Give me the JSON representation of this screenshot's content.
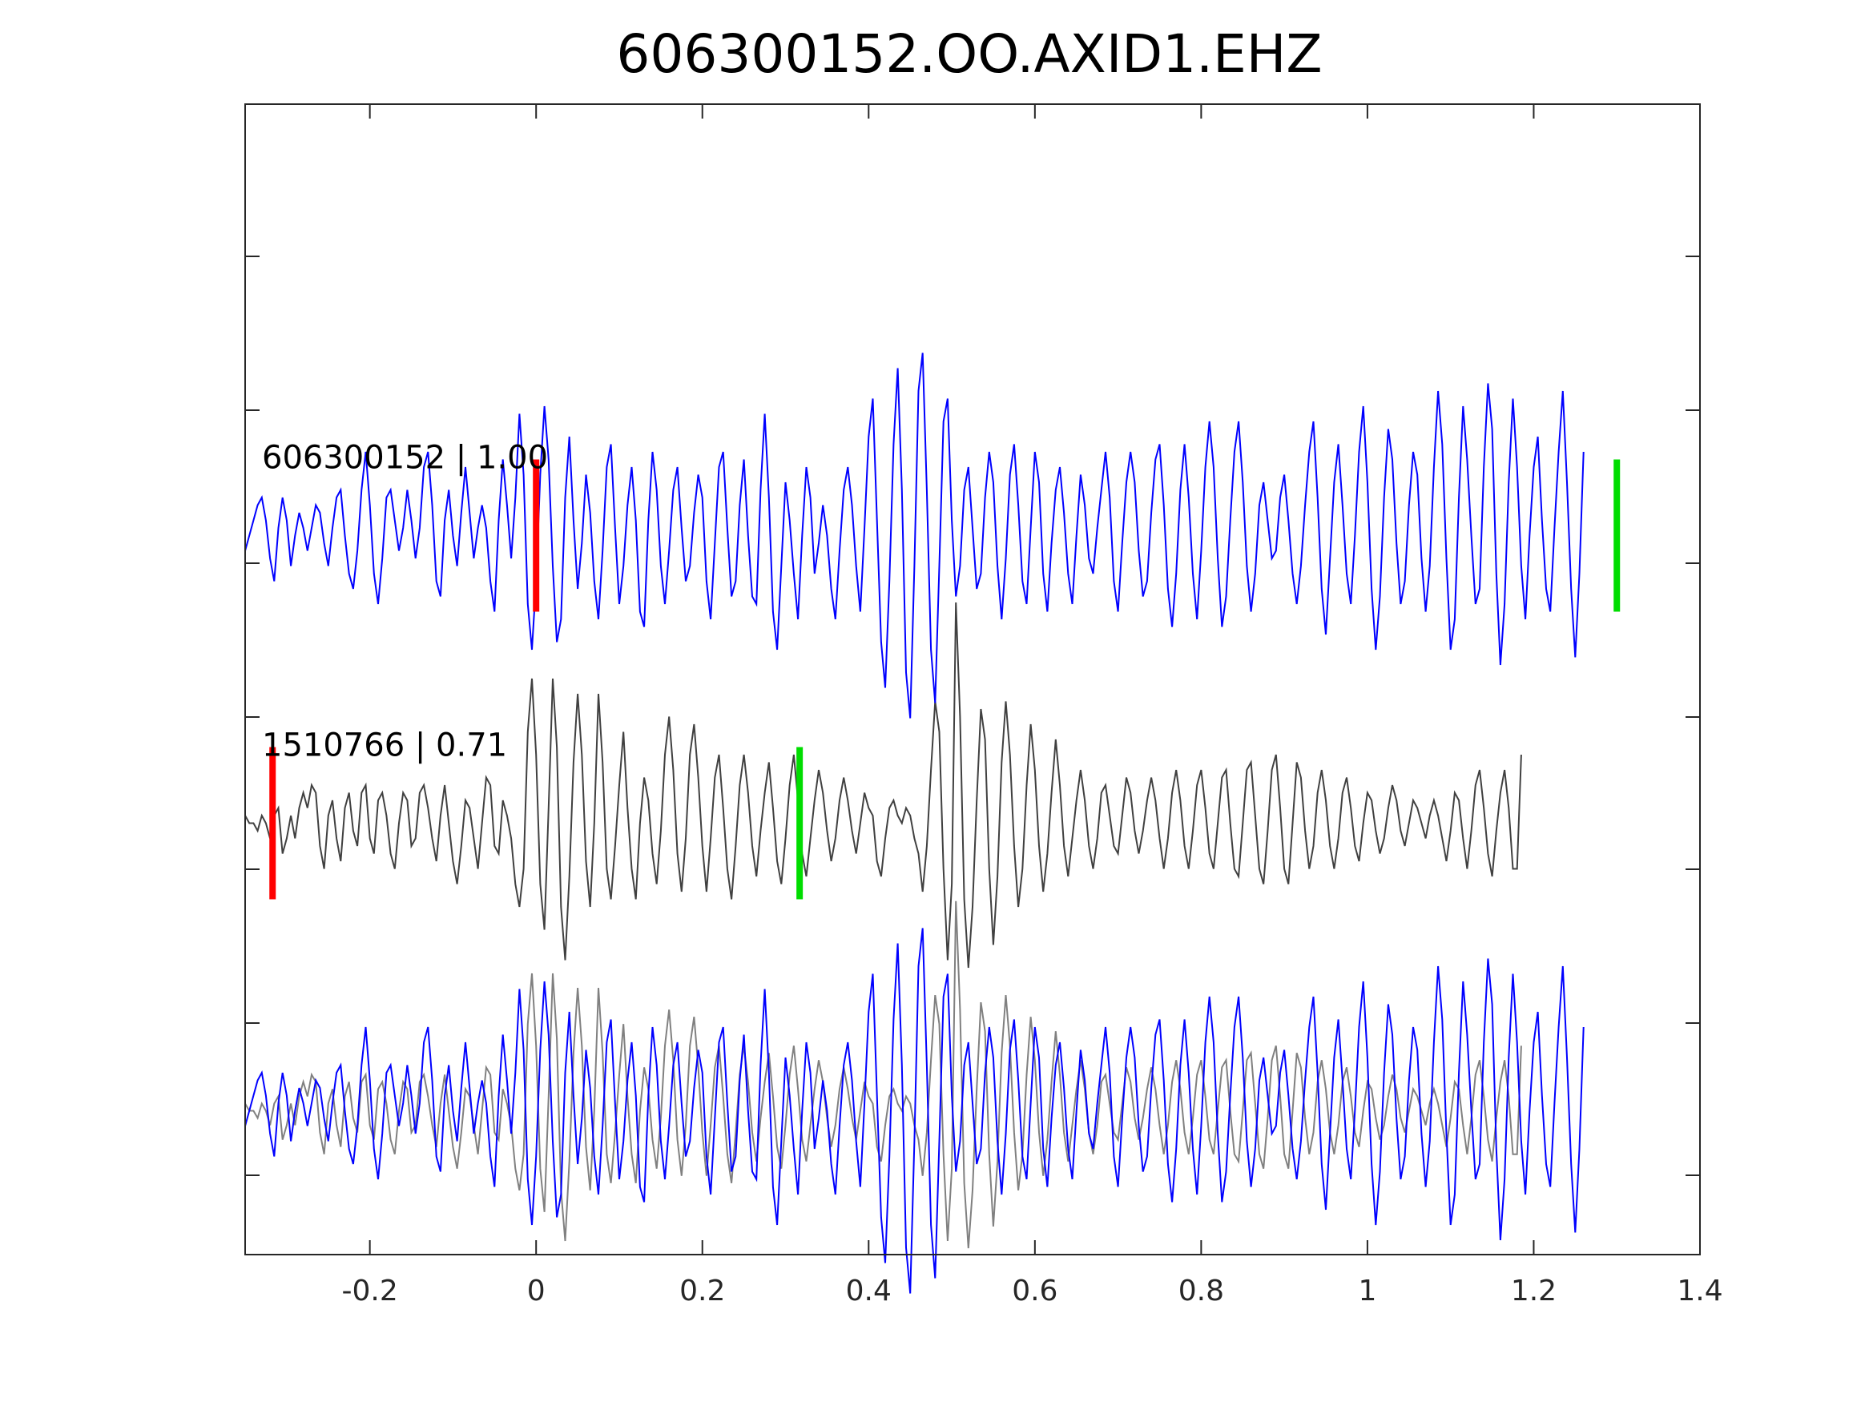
{
  "chart_data": {
    "type": "line",
    "title": "606300152.OO.AXID1.EHZ",
    "xlabel": "",
    "ylabel": "",
    "xlim": [
      -0.35,
      1.4
    ],
    "x_ticks": [
      -0.2,
      0,
      0.2,
      0.4,
      0.6,
      0.8,
      1,
      1.2,
      1.4
    ],
    "x_tick_labels": [
      "-0.2",
      "0",
      "0.2",
      "0.4",
      "0.6",
      "0.8",
      "1",
      "1.2",
      "1.4"
    ],
    "y_ticks_count": 7,
    "y_tick_labels_visible": false,
    "grid": false,
    "legend": "none",
    "traces": [
      {
        "label": "606300152 | 1.00",
        "color": "#0000ff",
        "offset": 0,
        "amplitude": 1.0,
        "waveform_ref": 0,
        "markers": [
          {
            "type": "pick-start",
            "color": "#ff0000",
            "x": 0.0
          },
          {
            "type": "pick-end",
            "color": "#00dd00",
            "x": 1.3
          }
        ]
      },
      {
        "label": "1510766 | 0.71",
        "color": "#404040",
        "offset": -1,
        "amplitude": 1.0,
        "waveform_ref": 1,
        "markers": [
          {
            "type": "pick-start",
            "color": "#ff0000",
            "x": -0.317
          },
          {
            "type": "pick-end",
            "color": "#00dd00",
            "x": 0.317
          }
        ]
      },
      {
        "label": "",
        "color": "#0000ff",
        "offset": -2,
        "amplitude": 1.0,
        "waveform_ref": 0,
        "markers": []
      },
      {
        "label": "",
        "color": "#808080",
        "offset": -2,
        "amplitude": 0.95,
        "waveform_ref": 1,
        "markers": []
      }
    ],
    "waveforms": [
      {
        "x_start": -0.35,
        "x_step": 0.005,
        "values": [
          -0.1,
          0.0,
          0.1,
          0.2,
          0.25,
          0.1,
          -0.15,
          -0.3,
          0.05,
          0.25,
          0.1,
          -0.2,
          0.0,
          0.15,
          0.05,
          -0.1,
          0.05,
          0.2,
          0.15,
          -0.05,
          -0.2,
          0.05,
          0.25,
          0.3,
          0.0,
          -0.25,
          -0.35,
          -0.1,
          0.3,
          0.55,
          0.2,
          -0.25,
          -0.45,
          -0.15,
          0.25,
          0.3,
          0.1,
          -0.1,
          0.05,
          0.3,
          0.1,
          -0.15,
          0.05,
          0.45,
          0.55,
          0.2,
          -0.3,
          -0.4,
          0.1,
          0.3,
          0.0,
          -0.2,
          0.15,
          0.45,
          0.15,
          -0.15,
          0.05,
          0.2,
          0.05,
          -0.3,
          -0.5,
          0.1,
          0.5,
          0.2,
          -0.15,
          0.25,
          0.8,
          0.4,
          -0.45,
          -0.75,
          -0.3,
          0.4,
          0.85,
          0.5,
          -0.2,
          -0.7,
          -0.55,
          0.25,
          0.65,
          0.1,
          -0.35,
          -0.05,
          0.4,
          0.15,
          -0.3,
          -0.55,
          -0.1,
          0.45,
          0.6,
          0.05,
          -0.45,
          -0.2,
          0.2,
          0.45,
          0.1,
          -0.5,
          -0.6,
          0.1,
          0.55,
          0.3,
          -0.2,
          -0.45,
          -0.1,
          0.3,
          0.45,
          0.05,
          -0.3,
          -0.2,
          0.15,
          0.4,
          0.25,
          -0.3,
          -0.55,
          -0.05,
          0.45,
          0.55,
          0.05,
          -0.4,
          -0.3,
          0.2,
          0.5,
          0.0,
          -0.4,
          -0.45,
          0.3,
          0.8,
          0.25,
          -0.5,
          -0.75,
          -0.2,
          0.35,
          0.1,
          -0.25,
          -0.55,
          0.0,
          0.45,
          0.25,
          -0.25,
          -0.05,
          0.2,
          0.0,
          -0.35,
          -0.55,
          -0.1,
          0.3,
          0.45,
          0.2,
          -0.2,
          -0.5,
          0.05,
          0.65,
          0.9,
          0.1,
          -0.7,
          -1.0,
          -0.3,
          0.6,
          1.1,
          0.3,
          -0.9,
          -1.2,
          -0.2,
          0.95,
          1.2,
          0.3,
          -0.75,
          -1.1,
          -0.2,
          0.75,
          0.9,
          0.1,
          -0.4,
          -0.2,
          0.3,
          0.45,
          0.05,
          -0.35,
          -0.25,
          0.25,
          0.55,
          0.35,
          -0.2,
          -0.55,
          -0.15,
          0.4,
          0.6,
          0.2,
          -0.3,
          -0.45,
          0.05,
          0.55,
          0.35,
          -0.25,
          -0.5,
          -0.05,
          0.3,
          0.45,
          0.15,
          -0.25,
          -0.45,
          0.0,
          0.4,
          0.2,
          -0.15,
          -0.25,
          0.05,
          0.3,
          0.55,
          0.25,
          -0.3,
          -0.5,
          -0.05,
          0.35,
          0.55,
          0.35,
          -0.1,
          -0.4,
          -0.3,
          0.15,
          0.5,
          0.6,
          0.2,
          -0.35,
          -0.6,
          -0.25,
          0.3,
          0.6,
          0.25,
          -0.25,
          -0.55,
          -0.1,
          0.45,
          0.75,
          0.45,
          -0.15,
          -0.6,
          -0.4,
          0.1,
          0.55,
          0.75,
          0.35,
          -0.2,
          -0.5,
          -0.25,
          0.2,
          0.35,
          0.1,
          -0.15,
          -0.1,
          0.25,
          0.4,
          0.1,
          -0.25,
          -0.45,
          -0.2,
          0.2,
          0.55,
          0.75,
          0.25,
          -0.35,
          -0.65,
          -0.15,
          0.35,
          0.6,
          0.2,
          -0.25,
          -0.45,
          0.0,
          0.55,
          0.85,
          0.35,
          -0.35,
          -0.75,
          -0.4,
          0.25,
          0.7,
          0.5,
          -0.05,
          -0.45,
          -0.3,
          0.2,
          0.55,
          0.4,
          -0.15,
          -0.5,
          -0.2,
          0.45,
          0.95,
          0.6,
          -0.15,
          -0.75,
          -0.55,
          0.25,
          0.85,
          0.5,
          0.0,
          -0.45,
          -0.35,
          0.45,
          1.0,
          0.7,
          -0.25,
          -0.85,
          -0.45,
          0.35,
          0.9,
          0.45,
          -0.2,
          -0.55,
          0.0,
          0.45,
          0.65,
          0.1,
          -0.35,
          -0.5,
          0.05,
          0.55,
          0.95,
          0.35,
          -0.35,
          -0.8,
          -0.25,
          0.55
        ]
      },
      {
        "x_start": -0.35,
        "x_step": 0.005,
        "values": [
          0.05,
          0.0,
          0.0,
          -0.05,
          0.05,
          0.0,
          -0.1,
          0.05,
          0.1,
          -0.2,
          -0.1,
          0.05,
          -0.1,
          0.1,
          0.2,
          0.1,
          0.25,
          0.2,
          -0.15,
          -0.3,
          0.05,
          0.15,
          -0.1,
          -0.25,
          0.1,
          0.2,
          -0.05,
          -0.15,
          0.2,
          0.25,
          -0.1,
          -0.2,
          0.15,
          0.2,
          0.05,
          -0.2,
          -0.3,
          0.0,
          0.2,
          0.15,
          -0.15,
          -0.1,
          0.2,
          0.25,
          0.1,
          -0.1,
          -0.25,
          0.05,
          0.25,
          0.0,
          -0.25,
          -0.4,
          -0.15,
          0.15,
          0.1,
          -0.1,
          -0.3,
          0.0,
          0.3,
          0.25,
          -0.15,
          -0.2,
          0.15,
          0.05,
          -0.1,
          -0.4,
          -0.55,
          -0.3,
          0.6,
          0.95,
          0.45,
          -0.4,
          -0.7,
          0.1,
          0.95,
          0.5,
          -0.55,
          -0.9,
          -0.35,
          0.4,
          0.85,
          0.45,
          -0.25,
          -0.55,
          0.0,
          0.85,
          0.4,
          -0.3,
          -0.5,
          -0.15,
          0.25,
          0.6,
          0.1,
          -0.3,
          -0.5,
          0.0,
          0.3,
          0.15,
          -0.2,
          -0.4,
          -0.05,
          0.45,
          0.7,
          0.35,
          -0.2,
          -0.45,
          -0.1,
          0.45,
          0.65,
          0.3,
          -0.15,
          -0.45,
          -0.1,
          0.3,
          0.45,
          0.1,
          -0.3,
          -0.5,
          -0.15,
          0.25,
          0.45,
          0.2,
          -0.15,
          -0.35,
          -0.05,
          0.2,
          0.4,
          0.1,
          -0.25,
          -0.4,
          -0.1,
          0.25,
          0.45,
          0.15,
          -0.2,
          -0.35,
          -0.1,
          0.15,
          0.35,
          0.2,
          -0.05,
          -0.25,
          -0.1,
          0.15,
          0.3,
          0.15,
          -0.05,
          -0.2,
          0.0,
          0.2,
          0.1,
          0.05,
          -0.25,
          -0.35,
          -0.1,
          0.1,
          0.15,
          0.05,
          0.0,
          0.1,
          0.05,
          -0.1,
          -0.2,
          -0.45,
          -0.15,
          0.35,
          0.8,
          0.6,
          -0.3,
          -0.9,
          -0.4,
          1.45,
          0.7,
          -0.5,
          -0.95,
          -0.55,
          0.15,
          0.75,
          0.55,
          -0.3,
          -0.8,
          -0.35,
          0.4,
          0.8,
          0.45,
          -0.15,
          -0.55,
          -0.3,
          0.25,
          0.65,
          0.35,
          -0.15,
          -0.45,
          -0.2,
          0.2,
          0.55,
          0.25,
          -0.15,
          -0.35,
          -0.1,
          0.15,
          0.35,
          0.15,
          -0.15,
          -0.3,
          -0.1,
          0.2,
          0.25,
          0.05,
          -0.15,
          -0.2,
          0.05,
          0.3,
          0.2,
          -0.05,
          -0.2,
          -0.05,
          0.15,
          0.3,
          0.15,
          -0.1,
          -0.3,
          -0.1,
          0.2,
          0.35,
          0.15,
          -0.15,
          -0.3,
          -0.05,
          0.25,
          0.35,
          0.1,
          -0.2,
          -0.3,
          0.0,
          0.3,
          0.35,
          0.0,
          -0.3,
          -0.35,
          0.0,
          0.35,
          0.4,
          0.05,
          -0.3,
          -0.4,
          -0.05,
          0.35,
          0.45,
          0.1,
          -0.3,
          -0.4,
          0.0,
          0.4,
          0.3,
          -0.05,
          -0.3,
          -0.15,
          0.2,
          0.35,
          0.15,
          -0.15,
          -0.3,
          -0.1,
          0.2,
          0.3,
          0.1,
          -0.15,
          -0.25,
          0.0,
          0.2,
          0.15,
          -0.05,
          -0.2,
          -0.1,
          0.1,
          0.25,
          0.15,
          -0.05,
          -0.15,
          0.0,
          0.15,
          0.1,
          0.0,
          -0.1,
          0.05,
          0.15,
          0.05,
          -0.1,
          -0.25,
          -0.05,
          0.2,
          0.15,
          -0.1,
          -0.3,
          -0.05,
          0.25,
          0.35,
          0.1,
          -0.2,
          -0.35,
          -0.05,
          0.2,
          0.35,
          0.1,
          -0.3,
          -0.3,
          0.45
        ]
      }
    ]
  }
}
